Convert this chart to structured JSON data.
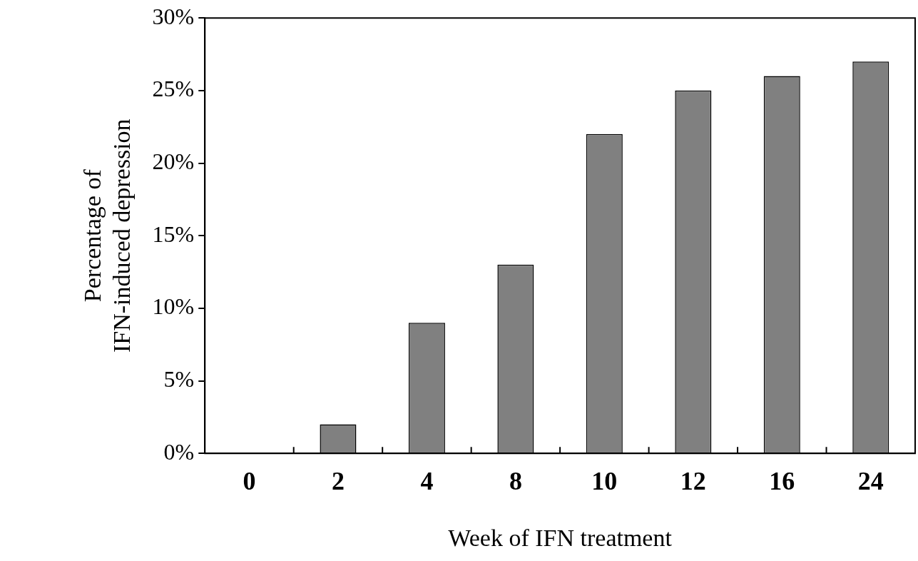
{
  "chart_data": {
    "type": "bar",
    "categories": [
      "0",
      "2",
      "4",
      "8",
      "10",
      "12",
      "16",
      "24"
    ],
    "values": [
      0,
      2,
      9,
      13,
      22,
      25,
      26,
      27
    ],
    "color": "#808080",
    "xlabel": "Week of IFN treatment",
    "ylabel": "Percentage of\nIFN-induced depression",
    "ylim": [
      0,
      30
    ],
    "yticks": [
      {
        "value": 0,
        "label": "0%"
      },
      {
        "value": 5,
        "label": "5%"
      },
      {
        "value": 10,
        "label": "10%"
      },
      {
        "value": 15,
        "label": "15%"
      },
      {
        "value": 20,
        "label": "20%"
      },
      {
        "value": 25,
        "label": "25%"
      },
      {
        "value": 30,
        "label": "30%"
      }
    ],
    "grid": false,
    "legend": false
  }
}
